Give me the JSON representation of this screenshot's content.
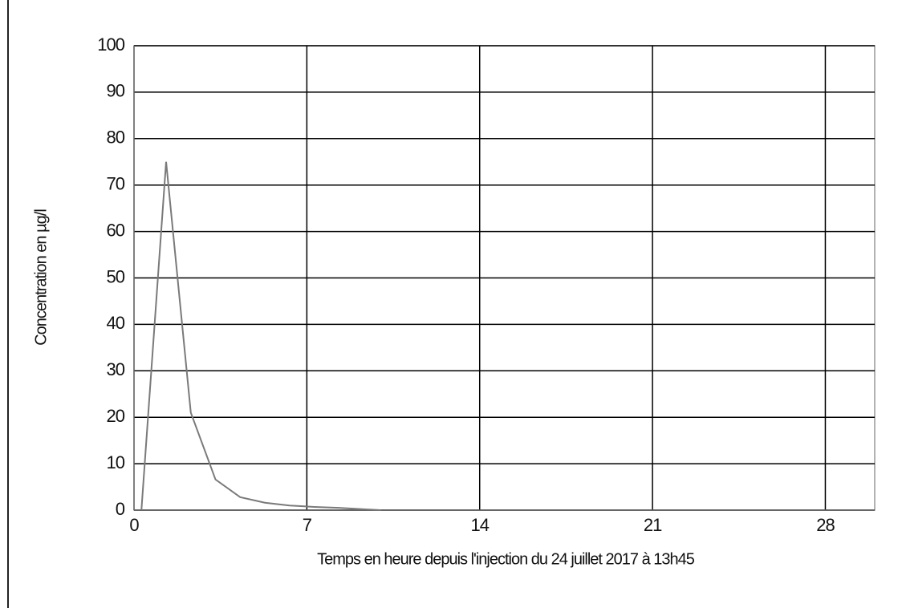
{
  "chart_data": {
    "type": "line",
    "x_label": "Temps en heure depuis l'injection du 24 juillet 2017 à 13h45",
    "y_label": "Concentration en µg/l",
    "x": [
      0.3,
      1.3,
      2.3,
      3.3,
      4.3,
      5.3,
      6.3,
      7.3,
      8.3,
      9.3,
      10
    ],
    "series": [
      {
        "color": "#7a7a7a",
        "values": [
          0,
          75,
          21,
          6.6,
          2.8,
          1.6,
          1.0,
          0.7,
          0.5,
          0.2,
          0
        ]
      }
    ],
    "xlim": [
      0,
      30
    ],
    "xticks": [
      0,
      7,
      14,
      21,
      28
    ],
    "ylim": [
      0,
      100
    ],
    "yticks": [
      0,
      10,
      20,
      30,
      40,
      50,
      60,
      70,
      80,
      90,
      100
    ],
    "grid": true
  }
}
